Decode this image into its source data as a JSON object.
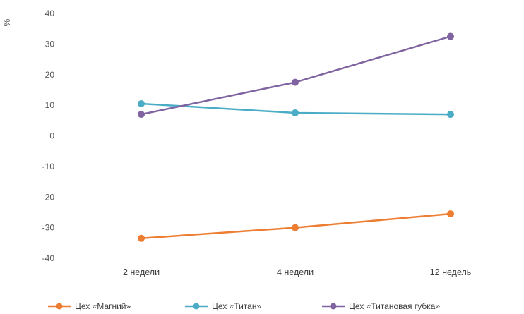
{
  "chart_data": {
    "type": "line",
    "title": "",
    "xlabel": "",
    "ylabel": "%",
    "categories": [
      "2 недели",
      "4 недели",
      "12 недель"
    ],
    "ylim": [
      -40,
      40
    ],
    "yticks": [
      40,
      30,
      20,
      10,
      0,
      -10,
      -20,
      -30,
      -40
    ],
    "grid": false,
    "legend_position": "bottom",
    "series": [
      {
        "name": "Цех «Магний»",
        "color": "#ED7D31",
        "values": [
          -33.5,
          -30,
          -25.5
        ]
      },
      {
        "name": "Цех «Титан»",
        "color": "#4BACC6",
        "values": [
          10.5,
          7.5,
          7
        ]
      },
      {
        "name": "Цех «Титановая губка»",
        "color": "#8064A2",
        "values": [
          7,
          17.5,
          32.5
        ]
      }
    ]
  }
}
